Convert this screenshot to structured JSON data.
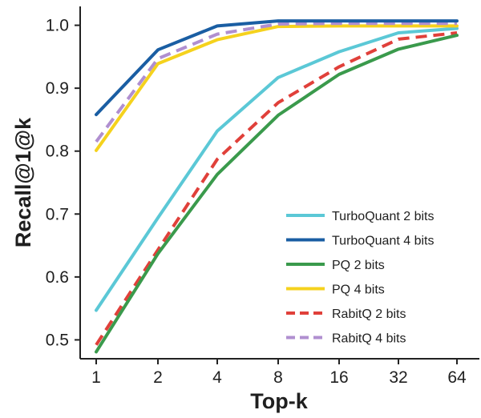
{
  "chart_data": {
    "type": "line",
    "title": "",
    "xlabel": "Top-k",
    "ylabel": "Recall@1@k",
    "categories": [
      "1",
      "2",
      "4",
      "8",
      "16",
      "32",
      "64"
    ],
    "ylim": [
      0.47,
      1.03
    ],
    "yticks": [
      0.5,
      0.6,
      0.7,
      0.8,
      0.9,
      1.0
    ],
    "ytick_labels": [
      "0.5",
      "0.6",
      "0.7",
      "0.8",
      "0.9",
      "1.0"
    ],
    "grid": false,
    "legend_position": "bottom-right",
    "series": [
      {
        "name": "TurboQuant 2 bits",
        "color": "#5bc8d6",
        "dash": "solid",
        "values": [
          0.547,
          0.694,
          0.832,
          0.917,
          0.958,
          0.988,
          0.995
        ]
      },
      {
        "name": "TurboQuant 4 bits",
        "color": "#1a5ea3",
        "dash": "solid",
        "values": [
          0.858,
          0.961,
          0.999,
          1.007,
          1.007,
          1.007,
          1.007
        ]
      },
      {
        "name": "PQ 2 bits",
        "color": "#3a9a4c",
        "dash": "solid",
        "values": [
          0.481,
          0.637,
          0.763,
          0.857,
          0.922,
          0.962,
          0.984
        ]
      },
      {
        "name": "PQ 4 bits",
        "color": "#f5d21d",
        "dash": "solid",
        "values": [
          0.801,
          0.939,
          0.977,
          0.998,
          0.999,
          0.999,
          0.999
        ]
      },
      {
        "name": "RabitQ 2 bits",
        "color": "#e0403a",
        "dash": "dashed",
        "values": [
          0.492,
          0.643,
          0.787,
          0.877,
          0.934,
          0.978,
          0.988
        ]
      },
      {
        "name": "RabitQ 4 bits",
        "color": "#b08fd0",
        "dash": "dashed",
        "values": [
          0.815,
          0.947,
          0.986,
          1.002,
          1.003,
          1.003,
          1.003
        ]
      }
    ]
  }
}
